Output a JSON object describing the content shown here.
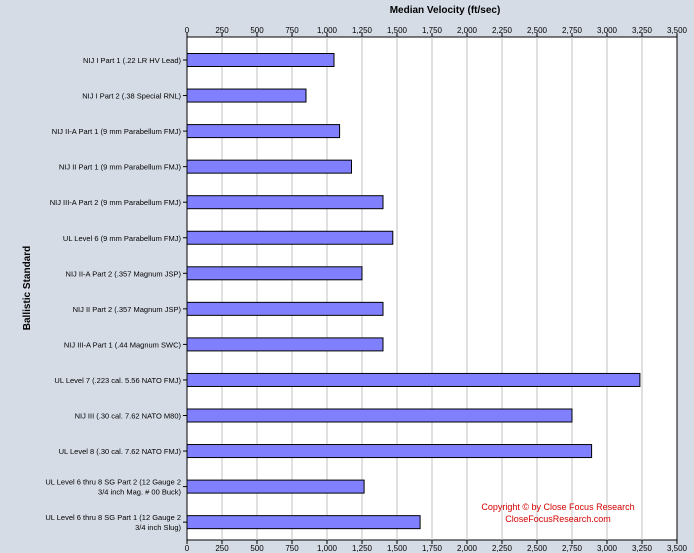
{
  "chart_data": {
    "type": "bar",
    "orientation": "horizontal",
    "xlabel": "Median Velocity (ft/sec)",
    "ylabel": "Ballistic Standard",
    "xlim": [
      0,
      3500
    ],
    "x_ticks": [
      "0",
      "250",
      "500",
      "750",
      "1,000",
      "1,250",
      "1,500",
      "1,750",
      "2,000",
      "2,250",
      "2,500",
      "2,750",
      "3,000",
      "3,250",
      "3,500"
    ],
    "x_tick_values": [
      0,
      250,
      500,
      750,
      1000,
      1250,
      1500,
      1750,
      2000,
      2250,
      2500,
      2750,
      3000,
      3250,
      3500
    ],
    "ticks_top_and_bottom": true,
    "grid": "vertical",
    "categories": [
      "NIJ I Part 1 (.22 LR HV Lead)",
      "NIJ I Part 2 (.38 Special RNL)",
      "NIJ II-A Part 1 (9 mm Parabellum FMJ)",
      "NIJ II Part 1 (9 mm Parabellum FMJ)",
      "NIJ III-A Part 2 (9 mm Parabellum FMJ)",
      "UL Level 6 (9 mm Parabellum FMJ)",
      "NIJ II-A Part 2 (.357 Magnum JSP)",
      "NIJ II Part 2 (.357 Magnum JSP)",
      "NIJ III-A Part 1 (.44 Magnum SWC)",
      "UL Level 7 (.223 cal. 5.56 NATO FMJ)",
      "NIJ III (.30 cal. 7.62 NATO M80)",
      "UL Level 8 (.30 cal. 7.62 NATO FMJ)",
      "UL Level 6 thru 8 SG Part 2 (12 Gauge 2 3/4 inch Mag. # 00 Buck)",
      "UL Level 6 thru 8 SG Part 1 (12 Gauge 2 3/4 inch Slug)"
    ],
    "category_label_lines": [
      [
        "NIJ I Part 1 (.22 LR HV Lead)"
      ],
      [
        "NIJ I Part 2 (.38 Special RNL)"
      ],
      [
        "NIJ II-A Part 1 (9 mm Parabellum FMJ)"
      ],
      [
        "NIJ II Part 1 (9 mm Parabellum FMJ)"
      ],
      [
        "NIJ III-A Part 2 (9 mm Parabellum FMJ)"
      ],
      [
        "UL Level 6 (9 mm Parabellum FMJ)"
      ],
      [
        "NIJ II-A Part 2 (.357 Magnum JSP)"
      ],
      [
        "NIJ II Part 2 (.357 Magnum JSP)"
      ],
      [
        "NIJ III-A Part 1 (.44 Magnum SWC)"
      ],
      [
        "UL Level 7 (.223 cal. 5.56 NATO FMJ)"
      ],
      [
        "NIJ III (.30 cal. 7.62 NATO M80)"
      ],
      [
        "UL Level 8 (.30 cal. 7.62 NATO FMJ)"
      ],
      [
        "UL Level 6 thru 8 SG Part 2 (12 Gauge 2",
        "3/4 inch Mag. # 00 Buck)"
      ],
      [
        "UL Level 6 thru 8 SG Part 1 (12 Gauge 2",
        "3/4 inch Slug)"
      ]
    ],
    "values": [
      1050,
      850,
      1090,
      1175,
      1400,
      1470,
      1250,
      1400,
      1400,
      3235,
      2750,
      2890,
      1265,
      1665
    ],
    "colors": {
      "bar_fill": "#8080ff",
      "bar_stroke": "#000000",
      "plot_background": "#ffffff",
      "page_background": "#d6dce6",
      "grid": "#c0c0c0",
      "annotation": "#d40000"
    },
    "annotations": [
      "Copyright © by  Close Focus  Research",
      "CloseFocusResearch.com"
    ]
  }
}
